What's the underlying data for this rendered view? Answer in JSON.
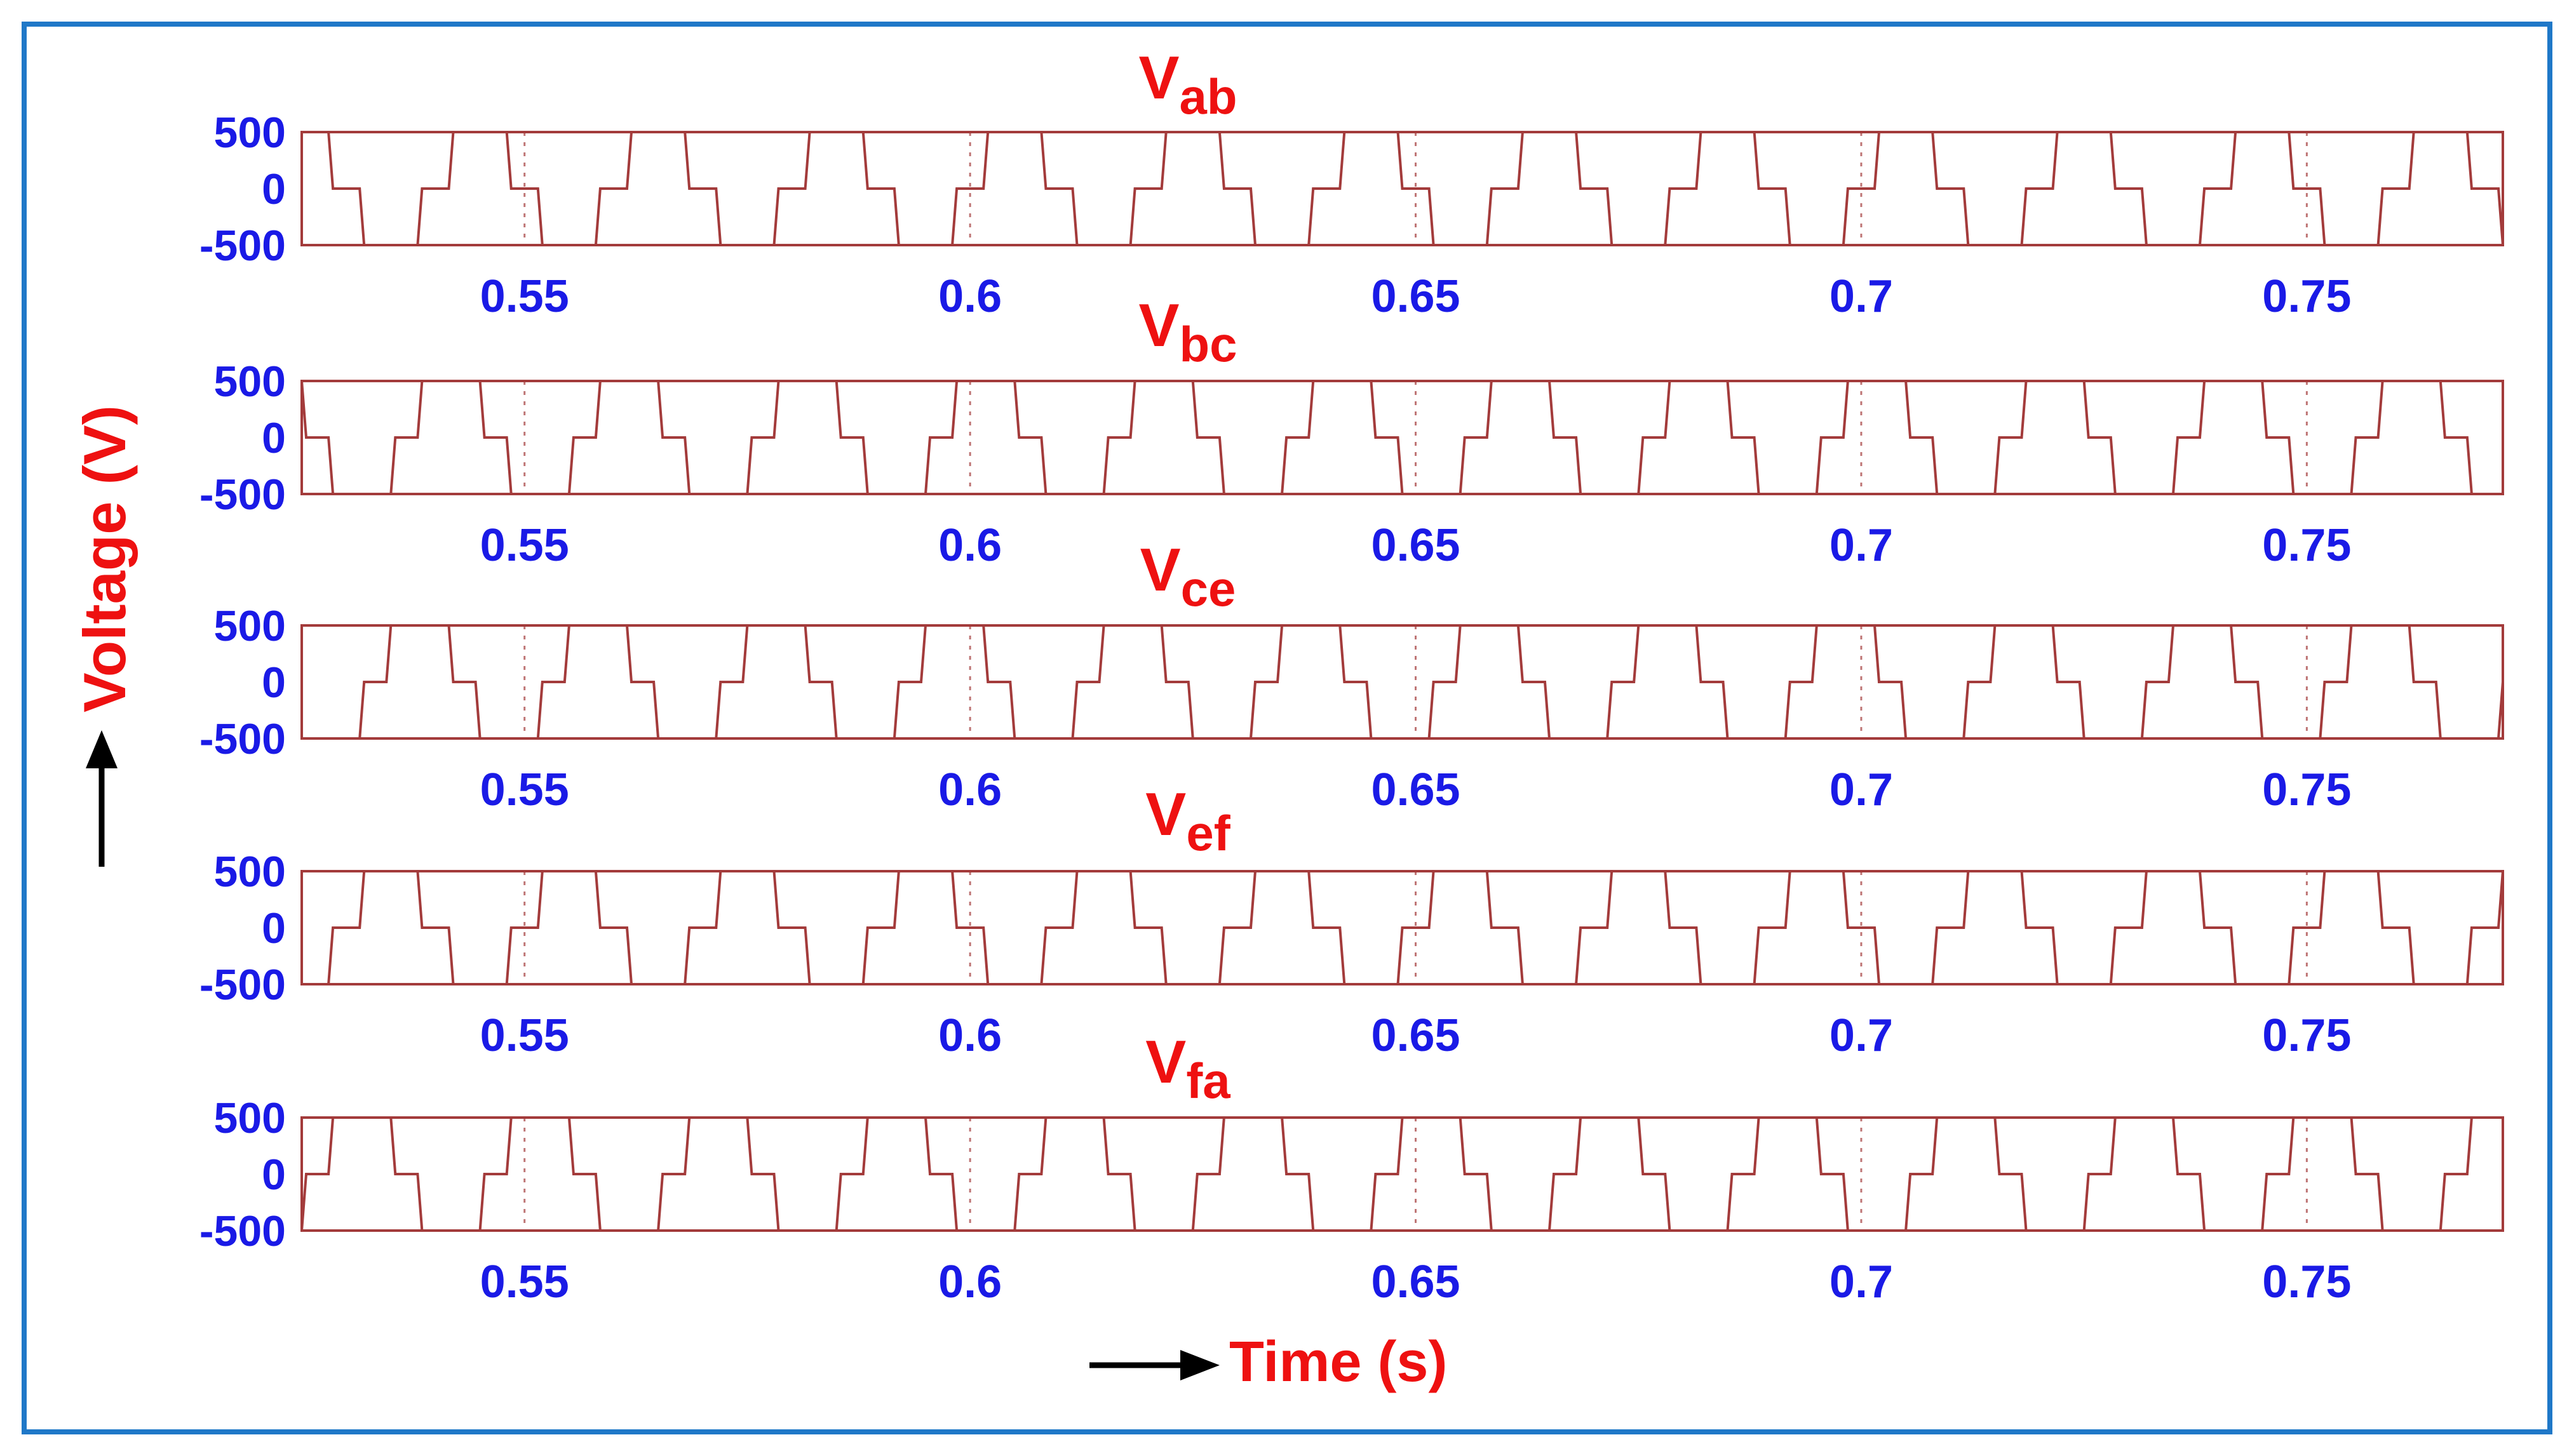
{
  "colors": {
    "frame": "#1f78c8",
    "trace": "#a33b3b",
    "ticks": "#1a1ae6",
    "titles": "#ee1111",
    "arrow": "#000000"
  },
  "y_axis_label": "Voltage (V)",
  "x_axis_label": "Time (s)",
  "chart_data": [
    {
      "type": "line",
      "title": "Vab",
      "title_main": "V",
      "title_sub": "ab",
      "xlim": [
        0.525,
        0.772
      ],
      "ylim": [
        -500,
        500
      ],
      "y_ticks": [
        "500",
        "0",
        "-500"
      ],
      "x_ticks": [
        "0.55",
        "0.6",
        "0.65",
        "0.7",
        "0.75"
      ],
      "x_tick_values": [
        0.55,
        0.6,
        0.65,
        0.7,
        0.75
      ],
      "series": [
        {
          "phase_offset_s": 0.0,
          "levels": [
            500,
            0,
            -500
          ]
        }
      ]
    },
    {
      "type": "line",
      "title": "Vbc",
      "title_main": "V",
      "title_sub": "bc",
      "xlim": [
        0.525,
        0.772
      ],
      "ylim": [
        -500,
        500
      ],
      "y_ticks": [
        "500",
        "0",
        "-500"
      ],
      "x_ticks": [
        "0.55",
        "0.6",
        "0.65",
        "0.7",
        "0.75"
      ],
      "x_tick_values": [
        0.55,
        0.6,
        0.65,
        0.7,
        0.75
      ],
      "series": [
        {
          "phase_offset_s": 0.0033,
          "levels": [
            500,
            0,
            -500
          ]
        }
      ]
    },
    {
      "type": "line",
      "title": "Vce",
      "title_main": "V",
      "title_sub": "ce",
      "xlim": [
        0.525,
        0.772
      ],
      "ylim": [
        -500,
        500
      ],
      "y_ticks": [
        "500",
        "0",
        "-500"
      ],
      "x_ticks": [
        "0.55",
        "0.6",
        "0.65",
        "0.7",
        "0.75"
      ],
      "x_tick_values": [
        0.55,
        0.6,
        0.65,
        0.7,
        0.75
      ],
      "series": [
        {
          "phase_offset_s": 0.0067,
          "levels": [
            500,
            0,
            -500
          ]
        }
      ]
    },
    {
      "type": "line",
      "title": "Vef",
      "title_main": "V",
      "title_sub": "ef",
      "xlim": [
        0.525,
        0.772
      ],
      "ylim": [
        -500,
        500
      ],
      "y_ticks": [
        "500",
        "0",
        "-500"
      ],
      "x_ticks": [
        "0.55",
        "0.6",
        "0.65",
        "0.7",
        "0.75"
      ],
      "x_tick_values": [
        0.55,
        0.6,
        0.65,
        0.7,
        0.75
      ],
      "series": [
        {
          "phase_offset_s": 0.01,
          "levels": [
            500,
            0,
            -500
          ]
        }
      ]
    },
    {
      "type": "line",
      "title": "Vfa",
      "title_main": "V",
      "title_sub": "fa",
      "xlim": [
        0.525,
        0.772
      ],
      "ylim": [
        -500,
        500
      ],
      "y_ticks": [
        "500",
        "0",
        "-500"
      ],
      "x_ticks": [
        "0.55",
        "0.6",
        "0.65",
        "0.7",
        "0.75"
      ],
      "x_tick_values": [
        0.55,
        0.6,
        0.65,
        0.7,
        0.75
      ],
      "series": [
        {
          "phase_offset_s": 0.0133,
          "levels": [
            500,
            0,
            -500
          ]
        }
      ]
    }
  ]
}
